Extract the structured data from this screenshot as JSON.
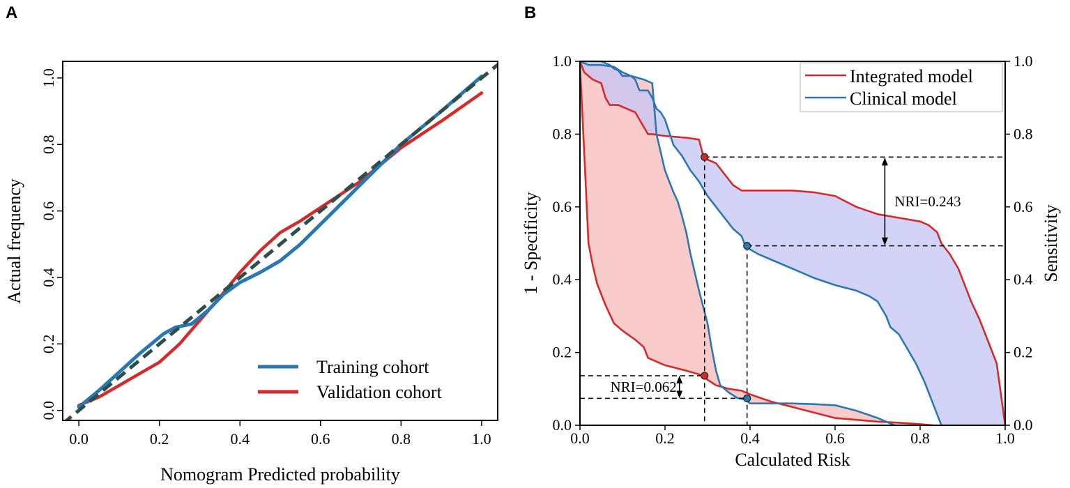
{
  "panels": {
    "a": {
      "letter": "A"
    },
    "b": {
      "letter": "B"
    }
  },
  "chart_data": [
    {
      "panel": "A",
      "type": "line",
      "title": "",
      "xlabel": "Nomogram Predicted probability",
      "ylabel": "Actual frequency",
      "xlim": [
        -0.04,
        1.04
      ],
      "ylim": [
        -0.03,
        1.05
      ],
      "xticks": [
        "0.0",
        "0.2",
        "0.4",
        "0.6",
        "0.8",
        "1.0"
      ],
      "yticks": [
        "0.0",
        "0.2",
        "0.4",
        "0.6",
        "0.8",
        "1.0"
      ],
      "legend_position": "bottom-right",
      "colors": {
        "training": "#2a78b3",
        "validation": "#d42a2a",
        "ideal": "#2e4e4c"
      },
      "series": [
        {
          "name": "Training cohort",
          "x": [
            0.0,
            0.05,
            0.1,
            0.15,
            0.19,
            0.21,
            0.24,
            0.28,
            0.32,
            0.36,
            0.4,
            0.45,
            0.5,
            0.55,
            0.6,
            0.7,
            0.8,
            0.9,
            1.0
          ],
          "y": [
            0.01,
            0.06,
            0.115,
            0.17,
            0.21,
            0.23,
            0.25,
            0.26,
            0.3,
            0.35,
            0.385,
            0.415,
            0.45,
            0.5,
            0.56,
            0.68,
            0.8,
            0.9,
            1.005
          ]
        },
        {
          "name": "Validation cohort",
          "x": [
            0.0,
            0.05,
            0.1,
            0.15,
            0.2,
            0.25,
            0.3,
            0.35,
            0.4,
            0.45,
            0.5,
            0.55,
            0.6,
            0.7,
            0.8,
            0.9,
            1.0
          ],
          "y": [
            0.015,
            0.04,
            0.075,
            0.11,
            0.145,
            0.2,
            0.27,
            0.34,
            0.415,
            0.48,
            0.535,
            0.57,
            0.61,
            0.69,
            0.79,
            0.87,
            0.955
          ]
        },
        {
          "name": "Ideal",
          "style": "dashed",
          "x": [
            -0.04,
            1.04
          ],
          "y": [
            -0.04,
            1.04
          ]
        }
      ]
    },
    {
      "panel": "B",
      "type": "line",
      "title": "",
      "xlabel": "Calculated Risk",
      "ylabel": "1 - Specificity",
      "ylabel_right": "Sensitivity",
      "xlim": [
        0,
        1
      ],
      "ylim": [
        0,
        1
      ],
      "xticks": [
        "0.0",
        "0.2",
        "0.4",
        "0.6",
        "0.8",
        "1.0"
      ],
      "yticks": [
        "0.0",
        "0.2",
        "0.4",
        "0.6",
        "0.8",
        "1.0"
      ],
      "yticks_right": [
        "0.0",
        "0.2",
        "0.4",
        "0.6",
        "0.8",
        "1.0"
      ],
      "legend_position": "top-right",
      "colors": {
        "integrated": "#d42a2a",
        "clinical": "#2a78b3",
        "fill_red": "#f7b9b9",
        "fill_blue": "#c4c4f5"
      },
      "series": [
        {
          "name": "Integrated model",
          "role": "sensitivity",
          "x": [
            0.0,
            0.01,
            0.02,
            0.03,
            0.05,
            0.06,
            0.07,
            0.09,
            0.11,
            0.13,
            0.14,
            0.15,
            0.16,
            0.17,
            0.2,
            0.25,
            0.28,
            0.29,
            0.3,
            0.32,
            0.34,
            0.36,
            0.38,
            0.4,
            0.45,
            0.5,
            0.55,
            0.6,
            0.65,
            0.7,
            0.75,
            0.8,
            0.82,
            0.84,
            0.85,
            0.87,
            0.88,
            0.89,
            0.9,
            0.92,
            0.94,
            0.96,
            0.98,
            1.0
          ],
          "y": [
            1.0,
            0.97,
            0.96,
            0.95,
            0.94,
            0.9,
            0.88,
            0.88,
            0.87,
            0.86,
            0.84,
            0.82,
            0.8,
            0.8,
            0.795,
            0.79,
            0.785,
            0.74,
            0.73,
            0.72,
            0.69,
            0.66,
            0.645,
            0.645,
            0.645,
            0.645,
            0.64,
            0.63,
            0.6,
            0.58,
            0.57,
            0.56,
            0.55,
            0.53,
            0.5,
            0.47,
            0.45,
            0.43,
            0.4,
            0.34,
            0.29,
            0.23,
            0.17,
            0.0
          ]
        },
        {
          "name": "Clinical model",
          "role": "sensitivity",
          "x": [
            0.0,
            0.05,
            0.07,
            0.08,
            0.09,
            0.1,
            0.11,
            0.12,
            0.13,
            0.14,
            0.15,
            0.16,
            0.17,
            0.18,
            0.19,
            0.2,
            0.22,
            0.24,
            0.26,
            0.28,
            0.3,
            0.32,
            0.34,
            0.36,
            0.38,
            0.39,
            0.42,
            0.45,
            0.5,
            0.55,
            0.6,
            0.65,
            0.68,
            0.7,
            0.72,
            0.73,
            0.75,
            0.77,
            0.79,
            0.81,
            0.83,
            0.85
          ],
          "y": [
            1.0,
            1.0,
            0.99,
            0.98,
            0.975,
            0.96,
            0.96,
            0.96,
            0.95,
            0.92,
            0.92,
            0.92,
            0.9,
            0.87,
            0.86,
            0.84,
            0.77,
            0.74,
            0.7,
            0.67,
            0.63,
            0.6,
            0.57,
            0.54,
            0.52,
            0.49,
            0.47,
            0.455,
            0.43,
            0.405,
            0.385,
            0.37,
            0.355,
            0.34,
            0.3,
            0.27,
            0.25,
            0.21,
            0.17,
            0.12,
            0.06,
            0.0
          ]
        },
        {
          "name": "Integrated model",
          "role": "1-specificity",
          "x": [
            0.0,
            0.01,
            0.02,
            0.03,
            0.04,
            0.05,
            0.06,
            0.08,
            0.1,
            0.13,
            0.15,
            0.16,
            0.2,
            0.25,
            0.28,
            0.29,
            0.3,
            0.32,
            0.35,
            0.38,
            0.4,
            0.45,
            0.5,
            0.55,
            0.6,
            0.65,
            0.7,
            0.75,
            0.8,
            0.83
          ],
          "y": [
            0.99,
            0.75,
            0.5,
            0.44,
            0.39,
            0.36,
            0.33,
            0.28,
            0.26,
            0.235,
            0.215,
            0.185,
            0.165,
            0.15,
            0.14,
            0.135,
            0.125,
            0.11,
            0.1,
            0.095,
            0.085,
            0.065,
            0.05,
            0.035,
            0.02,
            0.015,
            0.01,
            0.007,
            0.003,
            0.0
          ]
        },
        {
          "name": "Clinical model",
          "role": "1-specificity",
          "x": [
            0.0,
            0.02,
            0.05,
            0.08,
            0.1,
            0.12,
            0.15,
            0.17,
            0.18,
            0.2,
            0.22,
            0.23,
            0.24,
            0.25,
            0.26,
            0.27,
            0.28,
            0.29,
            0.3,
            0.31,
            0.32,
            0.33,
            0.35,
            0.37,
            0.39,
            0.4,
            0.45,
            0.5,
            0.55,
            0.6,
            0.65,
            0.68,
            0.7,
            0.72,
            0.73,
            0.74
          ],
          "y": [
            1.0,
            0.99,
            0.99,
            0.985,
            0.97,
            0.96,
            0.95,
            0.94,
            0.8,
            0.7,
            0.64,
            0.615,
            0.575,
            0.53,
            0.47,
            0.42,
            0.37,
            0.325,
            0.28,
            0.21,
            0.15,
            0.11,
            0.09,
            0.075,
            0.07,
            0.06,
            0.06,
            0.06,
            0.058,
            0.055,
            0.04,
            0.028,
            0.02,
            0.01,
            0.005,
            0.0
          ]
        }
      ],
      "annotations": [
        {
          "text": "NRI=0.243",
          "upper": 0.737,
          "lower": 0.493,
          "at_x": 0.717
        },
        {
          "text": "NRI=0.062",
          "upper": 0.136,
          "lower": 0.074,
          "at_x": 0.234
        }
      ],
      "markers": [
        {
          "series": "Integrated model",
          "x": 0.293,
          "y": 0.737
        },
        {
          "series": "Clinical model",
          "x": 0.393,
          "y": 0.493
        },
        {
          "series": "Integrated model",
          "x": 0.293,
          "y": 0.136
        },
        {
          "series": "Clinical model",
          "x": 0.393,
          "y": 0.074
        }
      ]
    }
  ]
}
